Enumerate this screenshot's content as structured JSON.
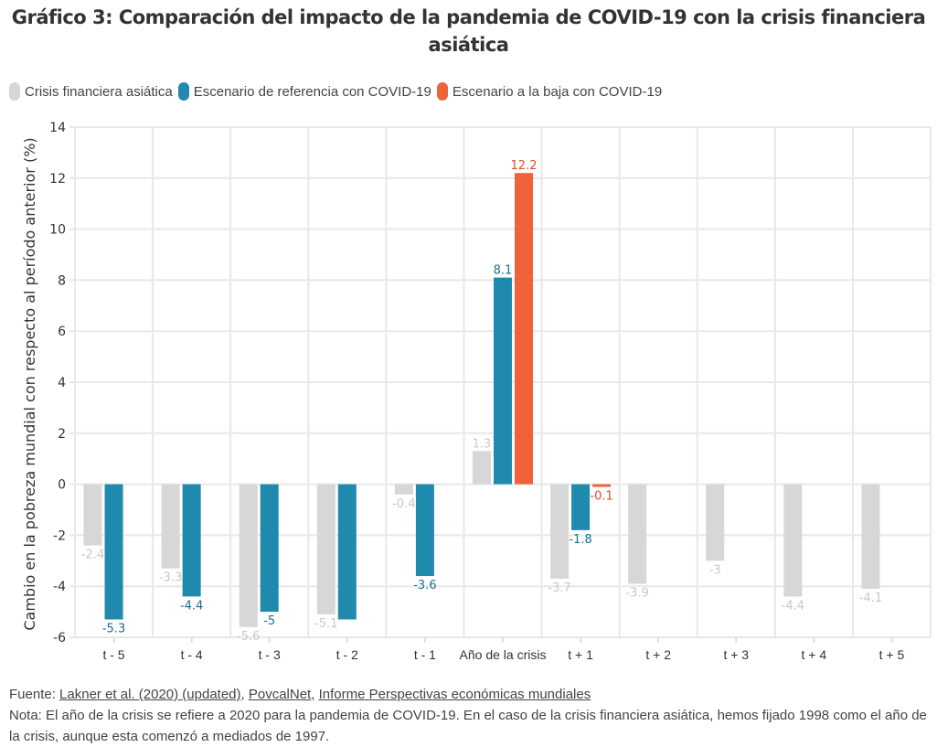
{
  "title": "Gráfico 3: Comparación del impacto de la pandemia de COVID-19 con la crisis financiera asiática",
  "legend": [
    {
      "label": "Crisis financiera asiática",
      "color": "#d7d7d7"
    },
    {
      "label": "Escenario de referencia con COVID-19",
      "color": "#1f8aad"
    },
    {
      "label": "Escenario a la baja con COVID-19",
      "color": "#f0623a"
    }
  ],
  "footer": {
    "source_prefix": "Fuente: ",
    "links": [
      "Lakner et al. (2020) (updated)",
      "PovcalNet",
      "Informe Perspectivas económicas mundiales"
    ],
    "note": "Nota: El año de la crisis se refiere a 2020 para la pandemia de COVID-19. En el caso de la crisis financiera asiática, hemos fijado 1998 como el año de la crisis, aunque esta comenzó a mediados de 1997."
  },
  "chart_data": {
    "type": "bar",
    "title": "Gráfico 3: Comparación del impacto de la pandemia de COVID-19 con la crisis financiera asiática",
    "xlabel": "",
    "ylabel": "Cambio en la pobreza mundial con respecto al período anterior (%)",
    "ylim": [
      -6,
      14
    ],
    "yticks": [
      -6,
      -4,
      -2,
      0,
      2,
      4,
      6,
      8,
      10,
      12,
      14
    ],
    "grid": true,
    "legend_position": "top-left",
    "categories": [
      "t - 5",
      "t - 4",
      "t - 3",
      "t - 2",
      "t - 1",
      "Año de la crisis",
      "t + 1",
      "t + 2",
      "t + 3",
      "t + 4",
      "t + 5"
    ],
    "series": [
      {
        "name": "Crisis financiera asiática",
        "color": "#d7d7d7",
        "label_color": "#c8c8c8",
        "values": [
          -2.4,
          -3.3,
          -5.6,
          -5.1,
          -0.4,
          1.3,
          -3.7,
          -3.9,
          -3,
          -4.4,
          -4.1
        ],
        "labels": [
          "-2.4",
          "-3.3",
          "-5.6",
          "-5.1",
          "-0.4",
          "1.3",
          "-3.7",
          "-3.9",
          "-3",
          "-4.4",
          "-4.1"
        ]
      },
      {
        "name": "Escenario de referencia con COVID-19",
        "color": "#1f8aad",
        "label_color": "#1a6f8c",
        "values": [
          -5.3,
          -4.4,
          -5,
          -5.3,
          -3.6,
          8.1,
          -1.8,
          null,
          null,
          null,
          null
        ],
        "labels": [
          "-5.3",
          "-4.4",
          "-5",
          "",
          "-3.6",
          "8.1",
          "-1.8",
          "",
          "",
          "",
          ""
        ]
      },
      {
        "name": "Escenario a la baja con COVID-19",
        "color": "#f0623a",
        "label_color": "#d9502b",
        "values": [
          null,
          null,
          null,
          null,
          null,
          12.2,
          -0.1,
          null,
          null,
          null,
          null
        ],
        "labels": [
          "",
          "",
          "",
          "",
          "",
          "12.2",
          "-0.1",
          "",
          "",
          "",
          ""
        ]
      }
    ]
  }
}
